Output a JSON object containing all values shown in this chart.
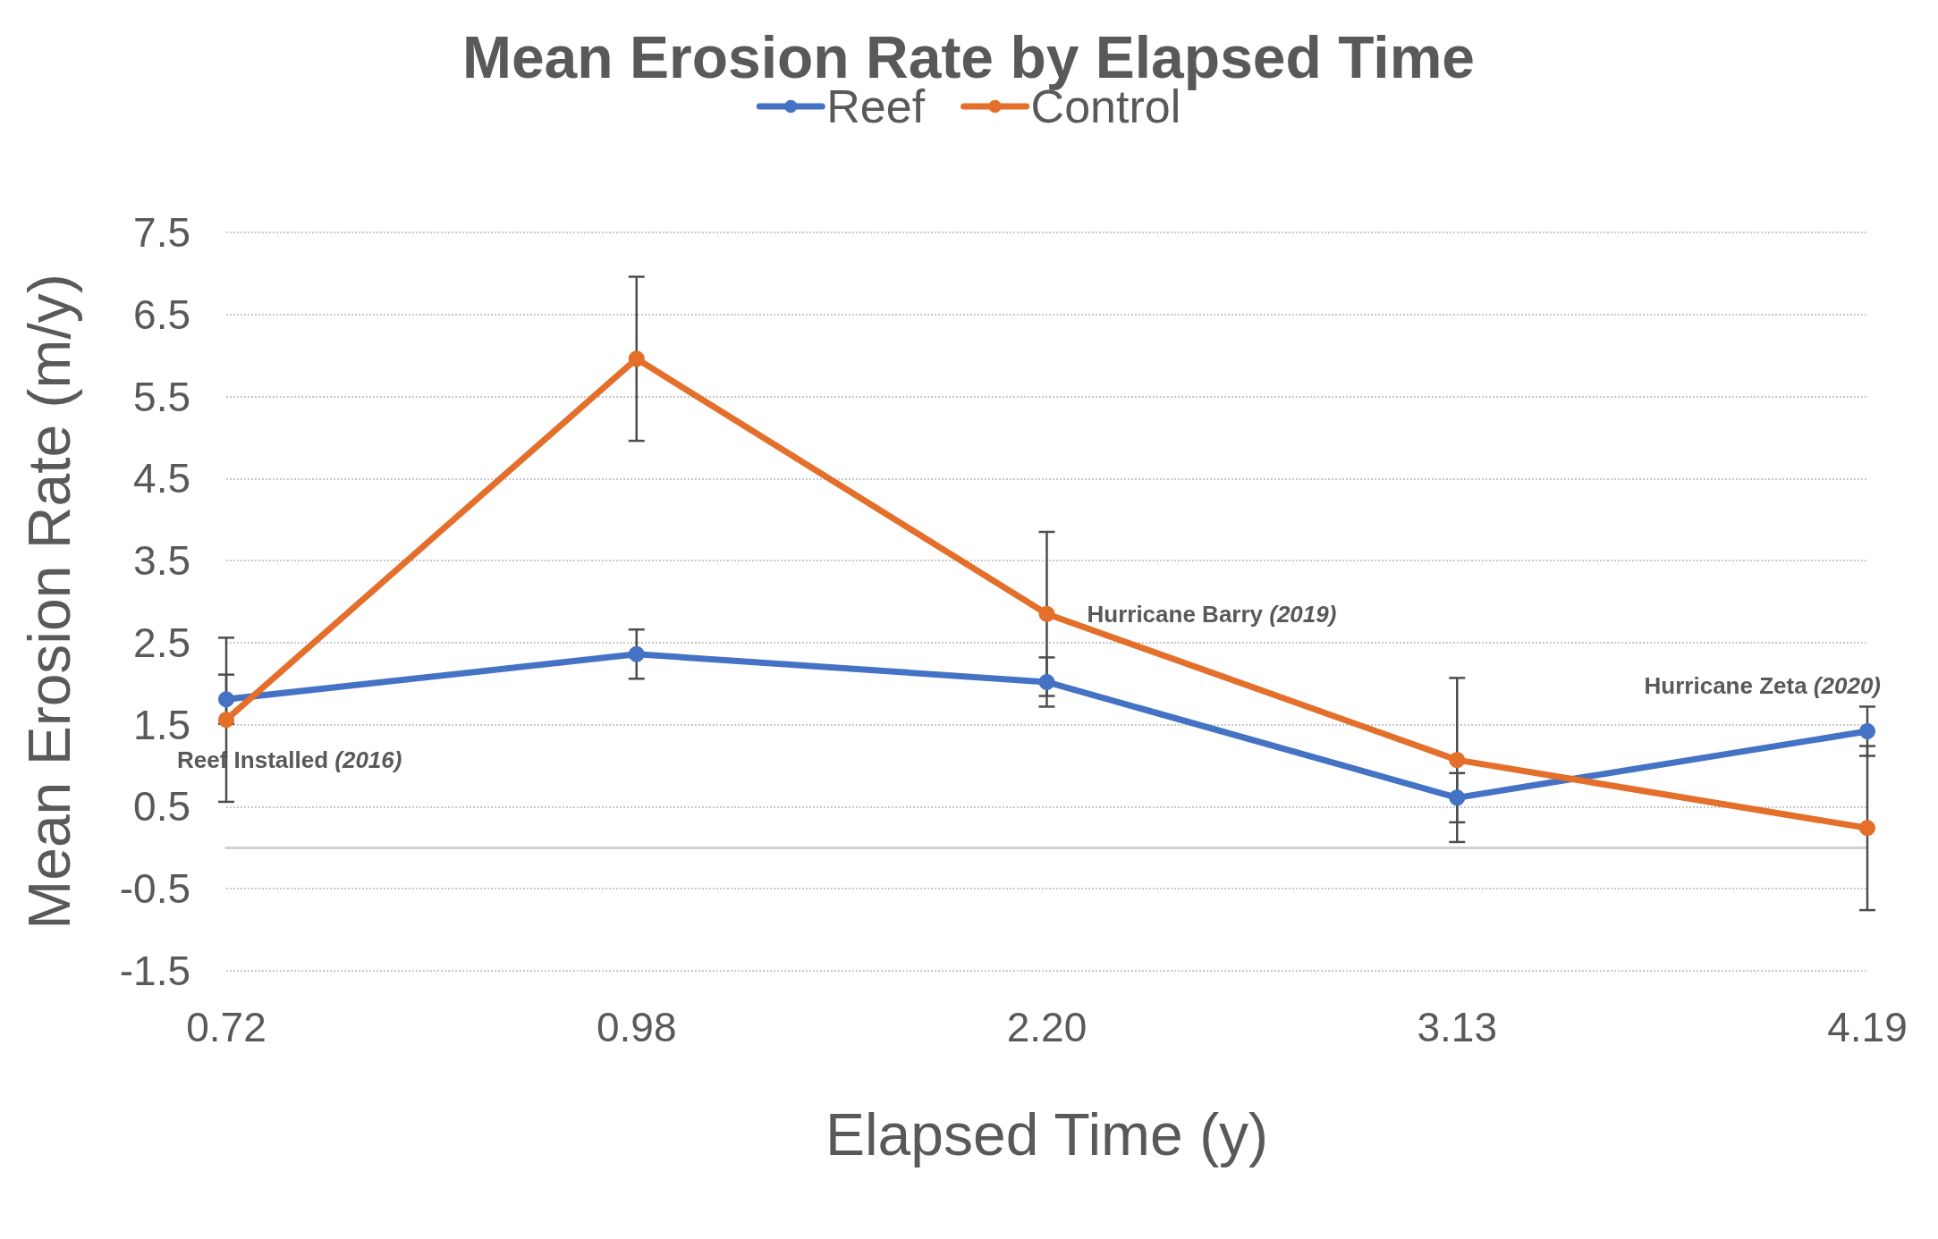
{
  "chart_data": {
    "type": "line",
    "title": "Mean Erosion Rate by Elapsed Time",
    "xlabel": "Elapsed Time (y)",
    "ylabel": "Mean Erosion Rate (m/y)",
    "categories": [
      "0.72",
      "0.98",
      "2.20",
      "3.13",
      "4.19"
    ],
    "series": [
      {
        "name": "Reef",
        "color": "#4472c4",
        "values": [
          1.81,
          2.36,
          2.02,
          0.61,
          1.42
        ],
        "errors": [
          0.3,
          0.3,
          0.3,
          0.3,
          0.3
        ]
      },
      {
        "name": "Control",
        "color": "#e46f2a",
        "values": [
          1.56,
          5.96,
          2.85,
          1.07,
          0.24
        ],
        "errors": [
          1.0,
          1.0,
          1.0,
          1.0,
          1.0
        ]
      }
    ],
    "ylim": [
      -1.5,
      7.5
    ],
    "yticks": [
      -1.5,
      -0.5,
      0.5,
      1.5,
      2.5,
      3.5,
      4.5,
      5.5,
      6.5,
      7.5
    ],
    "annotations": [
      {
        "text": "Reef Installed (2016)",
        "x": "0.72",
        "y": 1.56
      },
      {
        "text": "Hurricane Barry (2019)",
        "x": "2.20",
        "y": 2.85
      },
      {
        "text": "Hurricane Zeta (2020)",
        "x": "4.19",
        "y": 1.42
      }
    ],
    "grid": "y",
    "legend": "top",
    "marker": "circle",
    "line_style": "solid"
  }
}
